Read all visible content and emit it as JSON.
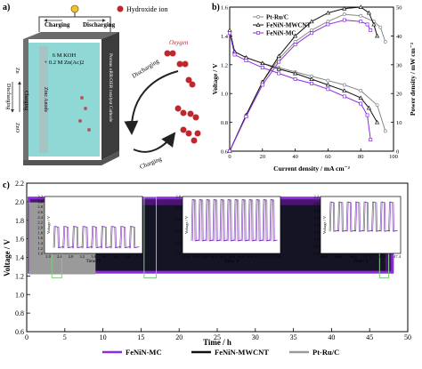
{
  "panel_labels": {
    "a": "a)",
    "b": "b)",
    "c": "c)"
  },
  "schematic": {
    "legend_hydroxide": "Hydroxide ion",
    "charging": "Charging",
    "discharging": "Discharging",
    "electrolyte_line1": "6 M KOH",
    "electrolyte_line2": "+ 0.2 M Zn(Ac)2",
    "cathode_label": "Porous oRR/OER catalyst Cathode",
    "anode_label": "Zinc Anode",
    "zn_label": "Zn",
    "zno_label": "ZnO",
    "left_discharging": "Discharging",
    "left_charging": "Charging",
    "oxygen": "Oxygen",
    "arrow_discharging": "Discharging",
    "arrow_charging": "Charging",
    "colors": {
      "electrolyte": "#8fd8d6",
      "case": "#555555",
      "hydroxide": "#c0272d",
      "arrow": "#222222"
    }
  },
  "chart_data": [
    {
      "type": "line",
      "panel": "b",
      "xlabel": "Current density / mA cm⁻²",
      "ylabel": "Voltage / V",
      "y2label": "Power density / mW cm⁻²",
      "xlim": [
        0,
        100
      ],
      "ylim": [
        0.6,
        1.6
      ],
      "y2lim": [
        0,
        50
      ],
      "xticks": [
        "0",
        "20",
        "40",
        "60",
        "80",
        "100"
      ],
      "yticks": [
        "0.6",
        "0.8",
        "1.0",
        "1.2",
        "1.4",
        "1.6"
      ],
      "y2ticks": [
        "0",
        "10",
        "20",
        "30",
        "40",
        "50"
      ],
      "legend": [
        "Pt-Ru/C",
        "FeNiN-MWCNT",
        "FeNiN-MC"
      ],
      "legend_position": "top-left",
      "series": [
        {
          "name": "Pt-Ru/C",
          "color": "#888888",
          "marker": "circle",
          "polarization": {
            "x": [
              0,
              3,
              10,
              20,
              30,
              40,
              50,
              60,
              70,
              80,
              90,
              95
            ],
            "y": [
              1.43,
              1.29,
              1.25,
              1.21,
              1.18,
              1.15,
              1.12,
              1.09,
              1.06,
              1.02,
              0.92,
              0.74
            ]
          },
          "power": {
            "x": [
              0,
              10,
              20,
              30,
              40,
              50,
              60,
              70,
              80,
              88,
              92,
              95
            ],
            "y": [
              0,
              12.5,
              24,
              32,
              38,
              42,
              45,
              47.5,
              47,
              45,
              43,
              38
            ]
          }
        },
        {
          "name": "FeNiN-MWCNT",
          "color": "#111111",
          "marker": "triangle",
          "polarization": {
            "x": [
              0,
              3,
              10,
              20,
              30,
              40,
              50,
              60,
              70,
              80,
              85,
              90
            ],
            "y": [
              1.44,
              1.29,
              1.25,
              1.21,
              1.17,
              1.14,
              1.1,
              1.06,
              1.02,
              0.97,
              0.9,
              0.8
            ]
          },
          "power": {
            "x": [
              0,
              10,
              20,
              30,
              40,
              50,
              60,
              70,
              80,
              85,
              88,
              90
            ],
            "y": [
              0,
              12.5,
              24,
              33,
              40,
              45,
              48,
              49.5,
              50,
              48,
              44,
              40
            ]
          }
        },
        {
          "name": "FeNiN-MC",
          "color": "#8a2be2",
          "marker": "square",
          "polarization": {
            "x": [
              0,
              3,
              10,
              20,
              30,
              40,
              50,
              60,
              70,
              80,
              84,
              86
            ],
            "y": [
              1.42,
              1.27,
              1.23,
              1.18,
              1.14,
              1.1,
              1.07,
              1.03,
              0.98,
              0.93,
              0.85,
              0.68
            ]
          },
          "power": {
            "x": [
              0,
              10,
              20,
              30,
              40,
              50,
              60,
              70,
              80,
              84,
              86
            ],
            "y": [
              0,
              12,
              23,
              31,
              37,
              41,
              44,
              45.5,
              45,
              44,
              42
            ]
          }
        }
      ]
    },
    {
      "type": "line",
      "panel": "c",
      "xlabel": "Time / h",
      "ylabel": "Voltage / V",
      "xlim": [
        0,
        50
      ],
      "ylim": [
        0.6,
        2.2
      ],
      "xticks": [
        "0",
        "5",
        "10",
        "15",
        "20",
        "25",
        "30",
        "35",
        "40",
        "45",
        "50"
      ],
      "yticks": [
        "0.6",
        "0.8",
        "1.0",
        "1.2",
        "1.4",
        "1.6",
        "1.8",
        "2.0",
        "2.2"
      ],
      "legend": [
        "FeNiN-MC",
        "FeNiN-MWCNT",
        "Pt-Ru/C"
      ],
      "legend_position": "bottom",
      "series": [
        {
          "name": "FeNiN-MC",
          "color": "#8a2be2",
          "t_end": 48,
          "charge_v": 2.04,
          "discharge_v": 1.24
        },
        {
          "name": "FeNiN-MWCNT",
          "color": "#111111",
          "t_end": 47,
          "charge_v": 1.96,
          "discharge_v": 1.26
        },
        {
          "name": "Pt-Ru/C",
          "color": "#999999",
          "t_end": 9,
          "charge_v": 1.99,
          "discharge_v": 1.22
        }
      ],
      "insets": [
        {
          "xlabel": "Time / h",
          "ylabel": "Voltage / V",
          "xticks": [
            "2.0",
            "2.4",
            "2.8",
            "3.2",
            "3.6",
            "4.0",
            "4.4",
            "4.8",
            "5.2"
          ],
          "yticks": [
            "1.0",
            "1.2",
            "1.4",
            "1.6",
            "1.8",
            "2.0",
            "2.2",
            "2.4",
            "2.6",
            "2.8",
            "3.0",
            "3.2"
          ],
          "ylim": [
            1.0,
            3.2
          ],
          "charge_v": 2.05,
          "discharge_v": 1.22
        },
        {
          "xlabel": "Time / h",
          "ylabel": "Voltage / V",
          "xticks": [
            "15.4",
            "15.6",
            "15.8",
            "16.0",
            "16.2",
            "16.4",
            "16.6",
            "16.8",
            "17.0",
            "17.2",
            "17.4"
          ],
          "yticks": [
            "1.0",
            "1.2",
            "1.4",
            "1.6",
            "1.8",
            "2.0"
          ],
          "ylim": [
            1.0,
            2.0
          ],
          "charge_v": 1.95,
          "discharge_v": 1.22
        },
        {
          "xlabel": "Time / h",
          "ylabel": "Voltage / V",
          "xticks": [
            "46.4",
            "46.6",
            "46.8",
            "47.0",
            "47.2",
            "47.4"
          ],
          "yticks": [
            "0.6",
            "0.8",
            "1.0",
            "1.2",
            "1.4",
            "1.6",
            "1.8",
            "2.0",
            "2.2"
          ],
          "ylim": [
            0.6,
            2.2
          ],
          "charge_v": 2.05,
          "discharge_v": 1.22
        }
      ],
      "highlight_color": "#7fcf7f"
    }
  ]
}
